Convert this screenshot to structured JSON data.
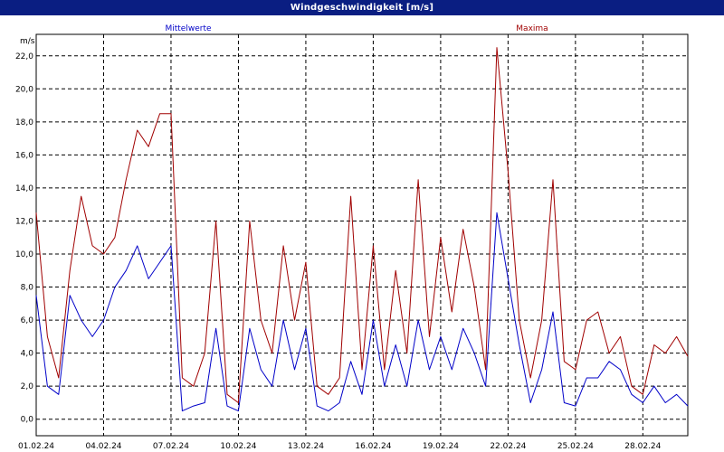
{
  "window": {
    "title": "Windgeschwindigkeit [m/s]"
  },
  "colors": {
    "titlebar": "#0a1e82",
    "mean": "#0000c8",
    "max": "#a00000",
    "grid": "#000000"
  },
  "chart_data": {
    "type": "line",
    "title": "Windgeschwindigkeit [m/s]",
    "ylabel": "m/s",
    "xlabel": "",
    "ylim": [
      -1,
      23.3
    ],
    "yticks": [
      0,
      2,
      4,
      6,
      8,
      10,
      12,
      14,
      16,
      18,
      20,
      22
    ],
    "ytick_labels": [
      "0,0",
      "2,0",
      "4,0",
      "6,0",
      "8,0",
      "10,0",
      "12,0",
      "14,0",
      "16,0",
      "18,0",
      "20,0",
      "22,0"
    ],
    "xlim": [
      "2024-02-01",
      "2024-03-01"
    ],
    "xtick_labels": [
      "01.02.24",
      "04.02.24",
      "07.02.24",
      "10.02.24",
      "13.02.24",
      "16.02.24",
      "19.02.24",
      "22.02.24",
      "25.02.24",
      "28.02.24"
    ],
    "x_days": [
      0,
      0.5,
      1,
      1.5,
      2,
      2.5,
      3,
      3.5,
      4,
      4.5,
      5,
      5.5,
      6,
      6.5,
      7,
      7.5,
      8,
      8.5,
      9,
      9.5,
      10,
      10.5,
      11,
      11.5,
      12,
      12.5,
      13,
      13.5,
      14,
      14.5,
      15,
      15.5,
      16,
      16.5,
      17,
      17.5,
      18,
      18.5,
      19,
      19.5,
      20,
      20.5,
      21,
      21.5,
      22,
      22.5,
      23,
      23.5,
      24,
      24.5,
      25,
      25.5,
      26,
      26.5,
      27,
      27.5,
      28,
      28.5,
      29
    ],
    "grid": true,
    "legend": "top",
    "series": [
      {
        "name": "Mittelwerte",
        "color": "#0000c8",
        "values": [
          7.5,
          2.0,
          1.5,
          7.5,
          6.0,
          5.0,
          6.0,
          8.0,
          9.0,
          10.5,
          8.5,
          9.5,
          10.5,
          0.5,
          0.8,
          1.0,
          5.5,
          0.8,
          0.5,
          5.5,
          3.0,
          2.0,
          6.0,
          3.0,
          5.5,
          0.8,
          0.5,
          1.0,
          3.5,
          1.5,
          6.0,
          2.0,
          4.5,
          2.0,
          6.0,
          3.0,
          5.0,
          3.0,
          5.5,
          4.0,
          2.0,
          12.5,
          8.5,
          4.5,
          1.0,
          3.0,
          6.5,
          1.0,
          0.8,
          2.5,
          2.5,
          3.5,
          3.0,
          1.5,
          1.0,
          2.0,
          1.0,
          1.5,
          0.8
        ]
      },
      {
        "name": "Maxima",
        "color": "#a00000",
        "values": [
          12.5,
          5.0,
          2.5,
          9.0,
          13.5,
          10.5,
          10.0,
          11.0,
          14.5,
          17.5,
          16.5,
          18.5,
          18.5,
          2.5,
          2.0,
          4.0,
          12.0,
          1.5,
          1.0,
          12.0,
          6.0,
          4.0,
          10.5,
          6.0,
          9.5,
          2.0,
          1.5,
          2.5,
          13.5,
          3.0,
          10.5,
          3.0,
          9.0,
          4.0,
          14.5,
          5.0,
          11.0,
          6.5,
          11.5,
          8.0,
          3.0,
          22.5,
          15.0,
          6.0,
          2.5,
          6.0,
          14.5,
          3.5,
          3.0,
          6.0,
          6.5,
          4.0,
          5.0,
          2.0,
          1.5,
          4.5,
          4.0,
          5.0,
          3.8
        ]
      }
    ]
  }
}
